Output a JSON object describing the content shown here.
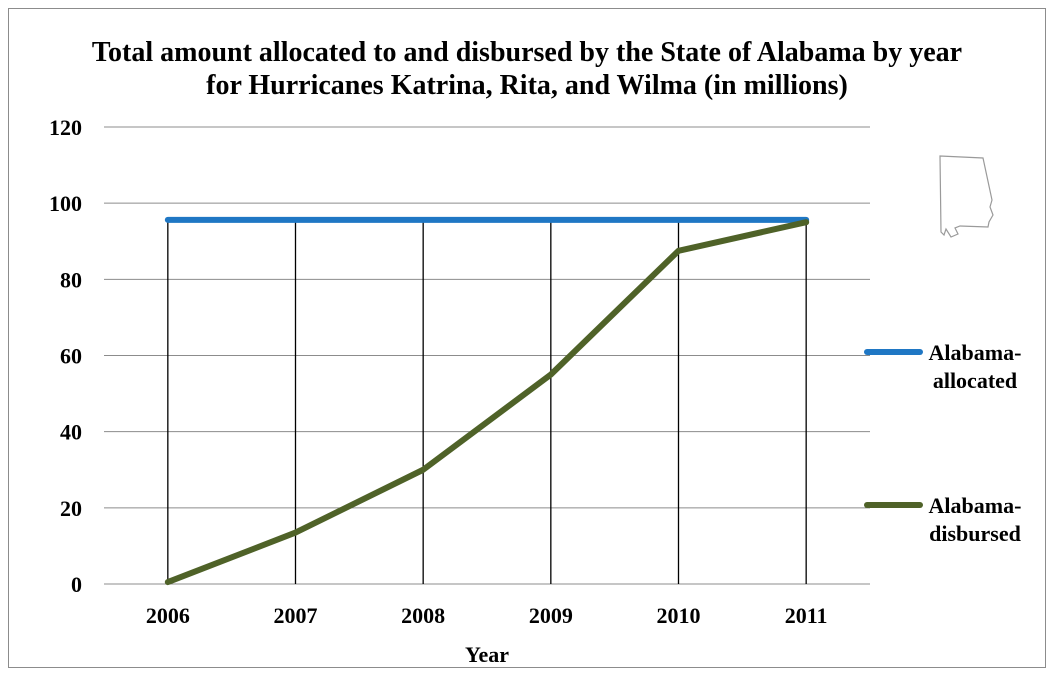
{
  "chart_data": {
    "type": "line",
    "title_lines": [
      "Total amount allocated to and disbursed by the State of Alabama by year",
      "for Hurricanes Katrina, Rita, and Wilma (in millions)"
    ],
    "xlabel": "Year",
    "ylabel": "",
    "categories": [
      "2006",
      "2007",
      "2008",
      "2009",
      "2010",
      "2011"
    ],
    "ylim": [
      0,
      120
    ],
    "yticks": [
      0,
      20,
      40,
      60,
      80,
      100,
      120
    ],
    "grid": "horizontal and vertical",
    "legend_position": "right",
    "series": [
      {
        "name_lines": [
          "Alabama-",
          "allocated"
        ],
        "color": "#1f77c4",
        "values": [
          95.6,
          95.6,
          95.6,
          95.6,
          95.6,
          95.6
        ]
      },
      {
        "name_lines": [
          "Alabama-",
          "disbursed"
        ],
        "color": "#4f6228",
        "values": [
          0.5,
          13.5,
          30,
          55,
          87.5,
          95
        ]
      }
    ],
    "decoration": "alabama-state-outline-icon"
  }
}
